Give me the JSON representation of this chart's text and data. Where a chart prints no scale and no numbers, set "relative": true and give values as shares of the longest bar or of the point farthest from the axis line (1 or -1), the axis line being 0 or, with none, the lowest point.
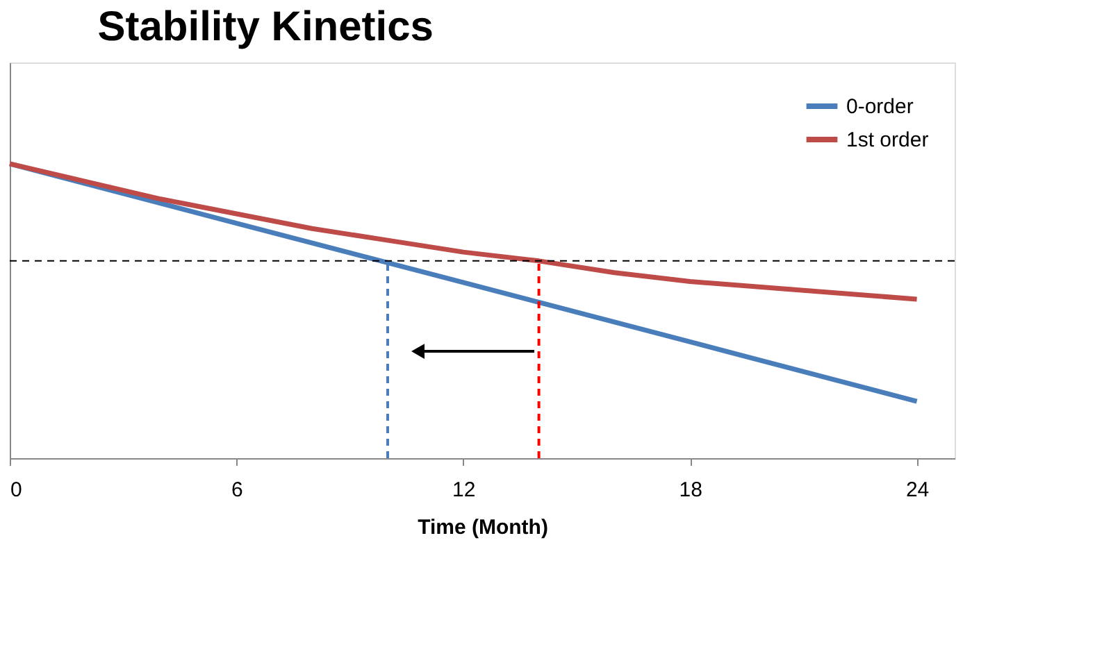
{
  "chart_data": {
    "type": "line",
    "title": "Stability Kinetics",
    "xlabel": "Time (Month)",
    "relative": true,
    "x": [
      0,
      6,
      12,
      18,
      24
    ],
    "xlim": [
      0,
      25
    ],
    "xticks": [
      0,
      6,
      12,
      18,
      24
    ],
    "grid": false,
    "legend": "top right",
    "marker": "none",
    "line_style": "solid",
    "tick_labels": "x",
    "series": [
      {
        "name": "0-order",
        "color": "#4a7ebb",
        "values": [
          1,
          0.798,
          0.597,
          0.395,
          0.193
        ]
      },
      {
        "name": "1st order",
        "color": "#be4b48",
        "x": [
          0,
          2,
          4,
          6,
          8,
          10,
          12,
          14,
          16,
          18,
          20,
          22,
          24
        ],
        "values": [
          1,
          0.94,
          0.88,
          0.83,
          0.78,
          0.74,
          0.7,
          0.67,
          0.63,
          0.6,
          0.58,
          0.56,
          0.54
        ]
      }
    ],
    "ref_lines": [
      {
        "axis": "y",
        "value": 0.67,
        "color": "#000000",
        "line_style": "dashed"
      },
      {
        "axis": "x",
        "value": 10,
        "color": "#4a7ebb",
        "line_style": "dashed"
      },
      {
        "axis": "x",
        "value": 14,
        "color": "#ff0000",
        "line_style": "dashed"
      }
    ]
  }
}
